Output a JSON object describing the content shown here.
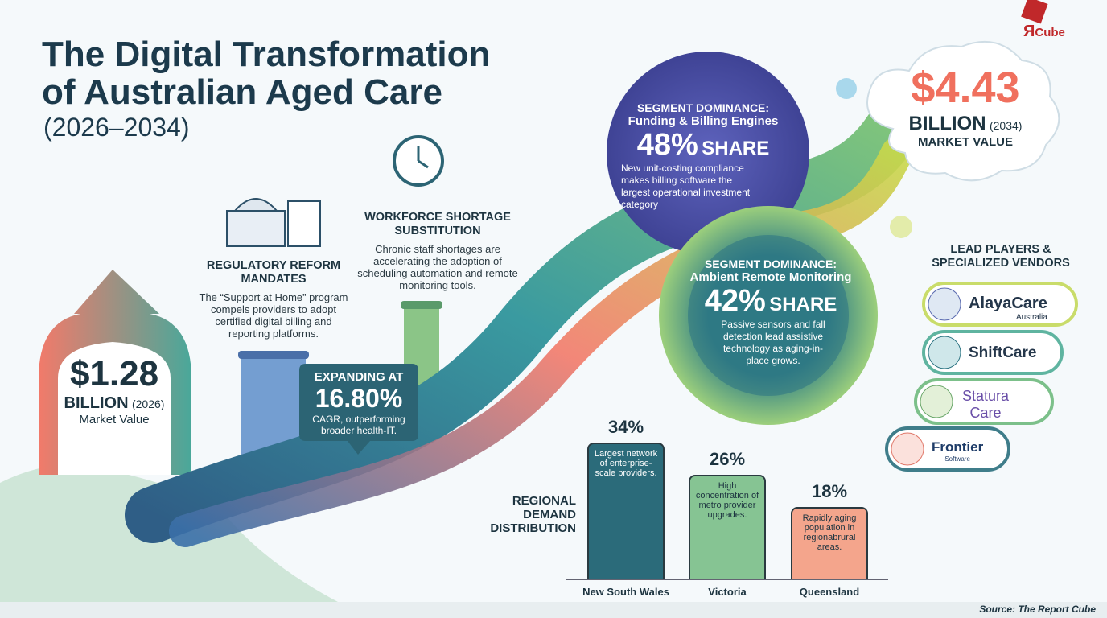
{
  "header": {
    "title_line1": "The Digital Transformation",
    "title_line2": "of Australian Aged Care",
    "subtitle": "(2026–2034)"
  },
  "logo": {
    "mark": "Я",
    "text": "Cube"
  },
  "start_value": {
    "amount": "$1.28",
    "unit": "BILLION",
    "year": "(2026)",
    "label": "Market Value"
  },
  "regulatory": {
    "title": "REGULATORY REFORM MANDATES",
    "text": "The “Support at Home” program compels providers to adopt certified digital billing and reporting platforms."
  },
  "workforce": {
    "title": "WORKFORCE SHORTAGE SUBSTITUTION",
    "text": "Chronic staff shortages are accelerating the adoption of scheduling automation and remote monitoring tools."
  },
  "cagr": {
    "label": "EXPANDING AT",
    "value": "16.80%",
    "text": "CAGR, outperforming broader health-IT."
  },
  "segments": [
    {
      "heading": "SEGMENT DOMINANCE:",
      "name": "Funding & Billing Engines",
      "share": "48%",
      "share_word": "SHARE",
      "text": "New unit-costing compliance makes billing software the largest operational investment category"
    },
    {
      "heading": "SEGMENT DOMINANCE:",
      "name": "Ambient Remote Monitoring",
      "share": "42%",
      "share_word": "SHARE",
      "text": "Passive sensors and fall detection lead assistive technology as aging-in-place grows."
    }
  ],
  "end_value": {
    "amount": "$4.43",
    "unit": "BILLION",
    "year": "(2034)",
    "label": "MARKET VALUE"
  },
  "vendors": {
    "title": "LEAD PLAYERS & SPECIALIZED VENDORS",
    "items": [
      {
        "name": "AlayaCare",
        "sub": "Australia"
      },
      {
        "name": "ShiftCare"
      },
      {
        "name": "Statura",
        "sub": "Care"
      },
      {
        "name": "Frontier",
        "sub": "Software"
      }
    ]
  },
  "regional": {
    "title": "REGIONAL DEMAND DISTRIBUTION",
    "categories": [
      "New South Wales",
      "Victoria",
      "Queensland"
    ],
    "values": [
      34,
      26,
      18
    ],
    "value_labels": [
      "34%",
      "26%",
      "18%"
    ],
    "notes": [
      "Largest network of enterprise-scale providers.",
      "High concentration of metro provider upgrades.",
      "Rapidly aging population in regionabrural areas."
    ],
    "colors": [
      "#2b6b7a",
      "#86c493",
      "#f4a58c"
    ]
  },
  "source": "Source: The Report Cube"
}
